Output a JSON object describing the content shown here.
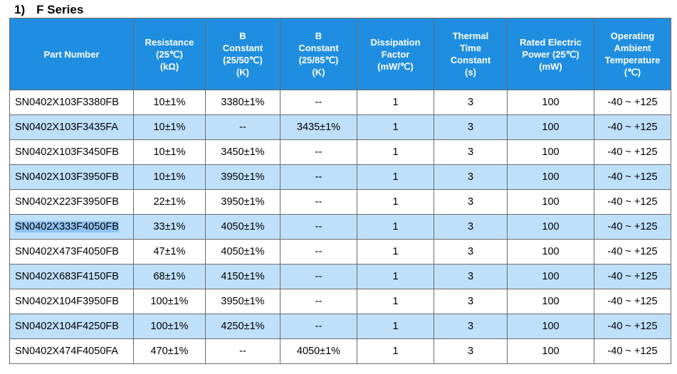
{
  "section": {
    "number": "1)",
    "title": "F Series"
  },
  "table": {
    "headers": [
      "Part Number",
      "Resistance\n(25℃)\n(kΩ)",
      "B\nConstant\n(25/50℃)\n(K)",
      "B\nConstant\n(25/85℃)\n(K)",
      "Dissipation\nFactor\n(mW/℃)",
      "Thermal\nTime\nConstant\n(s)",
      "Rated Electric\nPower (25℃)\n(mW)",
      "Operating\nAmbient\nTemperature\n(℃)"
    ],
    "rows": [
      [
        "SN0402X103F3380FB",
        "10±1%",
        "3380±1%",
        "--",
        "1",
        "3",
        "100",
        "-40 ~ +125"
      ],
      [
        "SN0402X103F3435FA",
        "10±1%",
        "--",
        "3435±1%",
        "1",
        "3",
        "100",
        "-40 ~ +125"
      ],
      [
        "SN0402X103F3450FB",
        "10±1%",
        "3450±1%",
        "--",
        "1",
        "3",
        "100",
        "-40 ~ +125"
      ],
      [
        "SN0402X103F3950FB",
        "10±1%",
        "3950±1%",
        "--",
        "1",
        "3",
        "100",
        "-40 ~ +125"
      ],
      [
        "SN0402X223F3950FB",
        "22±1%",
        "3950±1%",
        "--",
        "1",
        "3",
        "100",
        "-40 ~ +125"
      ],
      [
        "SN0402X333F4050FB",
        "33±1%",
        "4050±1%",
        "--",
        "1",
        "3",
        "100",
        "-40 ~ +125"
      ],
      [
        "SN0402X473F4050FB",
        "47±1%",
        "4050±1%",
        "--",
        "1",
        "3",
        "100",
        "-40 ~ +125"
      ],
      [
        "SN0402X683F4150FB",
        "68±1%",
        "4150±1%",
        "--",
        "1",
        "3",
        "100",
        "-40 ~ +125"
      ],
      [
        "SN0402X104F3950FB",
        "100±1%",
        "3950±1%",
        "--",
        "1",
        "3",
        "100",
        "-40 ~ +125"
      ],
      [
        "SN0402X104F4250FB",
        "100±1%",
        "4250±1%",
        "--",
        "1",
        "3",
        "100",
        "-40 ~ +125"
      ],
      [
        "SN0402X474F4050FA",
        "470±1%",
        "--",
        "4050±1%",
        "1",
        "3",
        "100",
        "-40 ~ +125"
      ]
    ],
    "selected_row_index": 5
  },
  "colors": {
    "header_bg": "#1f8ee0",
    "header_text": "#ffffff",
    "stripe_bg": "#bfe0fb",
    "selection_bg": "#8fc2f2"
  }
}
